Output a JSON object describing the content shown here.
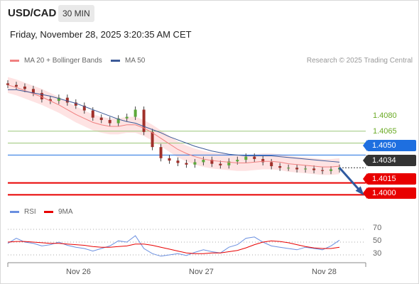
{
  "header": {
    "symbol": "USD/CAD",
    "interval": "30 MIN",
    "datetime": "Friday, November 28, 2025 3:20:35 AM CET"
  },
  "legend": {
    "ma20_label": "MA 20 + Bollinger Bands",
    "ma50_label": "MA 50",
    "credit": "Research © 2025 Trading Central",
    "rsi_label": "RSI",
    "ma9_label": "9MA"
  },
  "colors": {
    "ma20": "#f08080",
    "band": "#fddada",
    "ma50": "#3d5a98",
    "green": "#6aaa24",
    "blue": "#1e6fe0",
    "red": "#e80000",
    "dark": "#333333",
    "rsi": "#6a8fe0",
    "ma9": "#e80000",
    "up": "#5daa3a",
    "down": "#a0302a"
  },
  "levels": [
    {
      "value": 1.408,
      "label": "1.4080",
      "style": "green-text"
    },
    {
      "value": 1.4065,
      "label": "1.4065",
      "style": "green-text"
    },
    {
      "value": 1.405,
      "label": "1.4050",
      "style": "blue-box"
    },
    {
      "value": 1.4034,
      "label": "1.4034",
      "style": "dark-box"
    },
    {
      "value": 1.4015,
      "label": "1.4015",
      "style": "red-box"
    },
    {
      "value": 1.4,
      "label": "1.4000",
      "style": "red-box"
    }
  ],
  "chart_data": [
    {
      "type": "candlestick",
      "title": "USD/CAD 30 MIN",
      "ylim": [
        1.3995,
        1.4152
      ],
      "x_ticks": [
        "Nov 26",
        "Nov 27",
        "Nov 28"
      ],
      "series": [
        {
          "name": "MA 20 + Bollinger Bands",
          "values": [
            1.4138,
            1.4135,
            1.4131,
            1.4127,
            1.4123,
            1.4118,
            1.4113,
            1.4107,
            1.4101,
            1.4096,
            1.4091,
            1.4088,
            1.4086,
            1.4086,
            1.4088,
            1.4088,
            1.4084,
            1.4078,
            1.4071,
            1.4064,
            1.4057,
            1.4052,
            1.4048,
            1.4045,
            1.4043,
            1.4042,
            1.4041,
            1.404,
            1.404,
            1.4041,
            1.4042,
            1.4042,
            1.4041,
            1.4039,
            1.4038,
            1.4037,
            1.4036,
            1.4035,
            1.4035,
            1.4036
          ]
        },
        {
          "name": "MA 50",
          "values": [
            1.4132,
            1.4132,
            1.413,
            1.4128,
            1.4126,
            1.4124,
            1.4121,
            1.4118,
            1.4115,
            1.4111,
            1.4107,
            1.4103,
            1.4099,
            1.4095,
            1.4092,
            1.409,
            1.4086,
            1.4082,
            1.4078,
            1.4073,
            1.4069,
            1.4065,
            1.4061,
            1.4058,
            1.4055,
            1.4053,
            1.4051,
            1.405,
            1.4049,
            1.4049,
            1.4049,
            1.4049,
            1.4048,
            1.4047,
            1.4046,
            1.4045,
            1.4044,
            1.4043,
            1.4042,
            1.4041
          ]
        },
        {
          "name": "Close",
          "values": [
            1.4138,
            1.4136,
            1.4133,
            1.4128,
            1.412,
            1.4118,
            1.4122,
            1.4116,
            1.4112,
            1.4106,
            1.4097,
            1.4094,
            1.409,
            1.4096,
            1.4098,
            1.4107,
            1.4079,
            1.406,
            1.4046,
            1.4043,
            1.404,
            1.4038,
            1.4041,
            1.4044,
            1.4039,
            1.4037,
            1.4042,
            1.4044,
            1.4048,
            1.4045,
            1.4041,
            1.4036,
            1.4034,
            1.4034,
            1.4032,
            1.4033,
            1.4031,
            1.403,
            1.4032,
            1.4034
          ]
        }
      ]
    },
    {
      "type": "line",
      "title": "RSI",
      "ylim": [
        20,
        80
      ],
      "y_ticks": [
        70,
        50,
        30
      ],
      "series": [
        {
          "name": "RSI",
          "values": [
            48,
            56,
            50,
            48,
            44,
            46,
            50,
            45,
            42,
            40,
            36,
            40,
            44,
            52,
            50,
            60,
            40,
            32,
            28,
            30,
            32,
            29,
            34,
            38,
            35,
            33,
            42,
            46,
            56,
            58,
            50,
            44,
            42,
            40,
            38,
            42,
            40,
            38,
            44,
            53
          ]
        },
        {
          "name": "9MA",
          "values": [
            50,
            51,
            51,
            50,
            49,
            48,
            48,
            47,
            46,
            45,
            43,
            42,
            42,
            43,
            44,
            47,
            47,
            45,
            42,
            39,
            36,
            33,
            32,
            32,
            33,
            33,
            35,
            37,
            41,
            46,
            50,
            52,
            51,
            49,
            46,
            43,
            41,
            40,
            40,
            42
          ]
        }
      ]
    }
  ]
}
